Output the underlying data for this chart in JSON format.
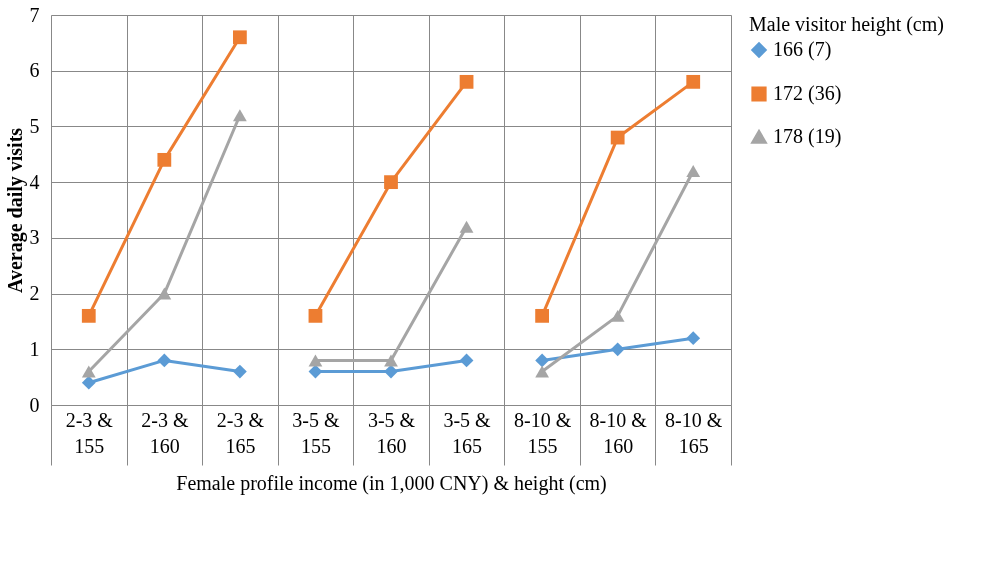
{
  "chart_data": {
    "type": "line",
    "xlabel": "Female profile income (in 1,000 CNY) & height (cm)",
    "ylabel": "Average daily visits",
    "legend_title": "Male visitor height (cm)",
    "categories": [
      "2-3 & 155",
      "2-3 & 160",
      "2-3 & 165",
      "3-5 & 155",
      "3-5 & 160",
      "3-5 & 165",
      "8-10 & 155",
      "8-10 & 160",
      "8-10 & 165"
    ],
    "series": [
      {
        "name": "166 (7)",
        "color": "#5b9bd5",
        "marker": "diamond",
        "values": [
          0.4,
          0.8,
          0.6,
          null,
          null,
          null,
          null,
          null,
          null
        ]
      },
      {
        "color": "#5b9bd5",
        "marker": "diamond",
        "values": [
          null,
          null,
          null,
          0.6,
          0.6,
          0.8,
          null,
          null,
          null
        ]
      },
      {
        "color": "#5b9bd5",
        "marker": "diamond",
        "values": [
          null,
          null,
          null,
          null,
          null,
          null,
          0.8,
          1.0,
          1.2
        ]
      },
      {
        "name": "172 (36)",
        "color": "#ed7d31",
        "marker": "square",
        "values": [
          1.6,
          4.4,
          6.6,
          null,
          null,
          null,
          null,
          null,
          null
        ]
      },
      {
        "color": "#ed7d31",
        "marker": "square",
        "values": [
          null,
          null,
          null,
          1.6,
          4.0,
          5.8,
          null,
          null,
          null
        ]
      },
      {
        "color": "#ed7d31",
        "marker": "square",
        "values": [
          null,
          null,
          null,
          null,
          null,
          null,
          1.6,
          4.8,
          5.8
        ]
      },
      {
        "name": "178 (19)",
        "color": "#a5a5a5",
        "marker": "triangle",
        "values": [
          0.6,
          2.0,
          5.2,
          null,
          null,
          null,
          null,
          null,
          null
        ]
      },
      {
        "color": "#a5a5a5",
        "marker": "triangle",
        "values": [
          null,
          null,
          null,
          0.8,
          0.8,
          3.2,
          null,
          null,
          null
        ]
      },
      {
        "color": "#a5a5a5",
        "marker": "triangle",
        "values": [
          null,
          null,
          null,
          null,
          null,
          null,
          0.6,
          1.6,
          4.2
        ]
      }
    ],
    "ylim": [
      0,
      7
    ],
    "yticks": [
      0,
      1,
      2,
      3,
      4,
      5,
      6,
      7
    ],
    "grid": true,
    "legend": "right",
    "line_style": "solid"
  }
}
